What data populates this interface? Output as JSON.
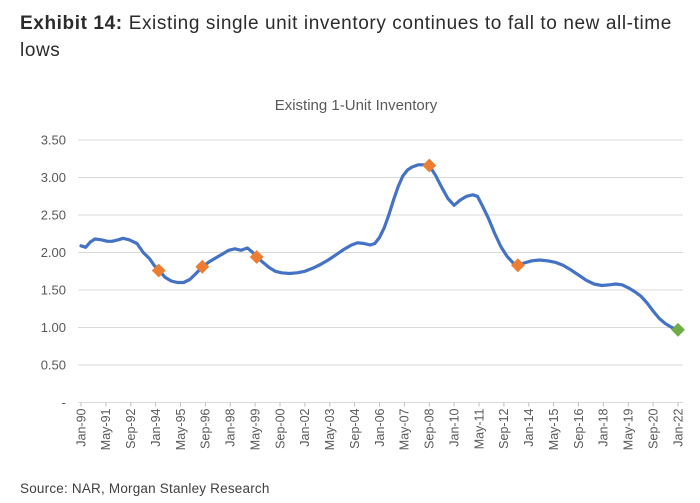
{
  "header": {
    "exhibit_label": "Exhibit 14:",
    "title_rest": "Existing single unit inventory continues to fall to new all-time lows"
  },
  "source_note": "Source: NAR, Morgan Stanley Research",
  "chart_data": {
    "type": "line",
    "title": "Existing 1-Unit Inventory",
    "title_color": "#595959",
    "line_color": "#4472C4",
    "gridline_color": "#D9D9D9",
    "tick_color": "#BFBFBF",
    "axis_text_color": "#595959",
    "grid": "horizontal-only",
    "legend": "none",
    "marker_shape": "diamond",
    "y_axis": {
      "min": 0,
      "max": 3.5,
      "step": 0.5,
      "tick_labels_top_to_bottom": [
        "3.50",
        "3.00",
        "2.50",
        "2.00",
        "1.50",
        "1.00",
        "0.50",
        "-"
      ]
    },
    "x_axis": {
      "tick_labels": [
        "Jan-90",
        "May-91",
        "Sep-92",
        "Jan-94",
        "May-95",
        "Sep-96",
        "Jan-98",
        "May-99",
        "Sep-00",
        "Jan-02",
        "May-03",
        "Sep-04",
        "Jan-06",
        "May-07",
        "Sep-08",
        "Jan-10",
        "May-11",
        "Sep-12",
        "Jan-14",
        "May-15",
        "Sep-16",
        "Jan-18",
        "May-19",
        "Sep-20",
        "Jan-22"
      ],
      "months_between_ticks": 16
    },
    "series": [
      {
        "name": "Existing 1-Unit Inventory",
        "color": "#4472C4",
        "points_month_value": [
          [
            0,
            2.09
          ],
          [
            3,
            2.07
          ],
          [
            6,
            2.14
          ],
          [
            9,
            2.18
          ],
          [
            13,
            2.17
          ],
          [
            17,
            2.15
          ],
          [
            20,
            2.15
          ],
          [
            24,
            2.17
          ],
          [
            27,
            2.19
          ],
          [
            31,
            2.17
          ],
          [
            36,
            2.12
          ],
          [
            40,
            2.0
          ],
          [
            44,
            1.92
          ],
          [
            47,
            1.83
          ],
          [
            50,
            1.77
          ],
          [
            54,
            1.67
          ],
          [
            58,
            1.62
          ],
          [
            62,
            1.6
          ],
          [
            66,
            1.6
          ],
          [
            70,
            1.64
          ],
          [
            74,
            1.72
          ],
          [
            78,
            1.81
          ],
          [
            82,
            1.87
          ],
          [
            86,
            1.92
          ],
          [
            91,
            1.98
          ],
          [
            95,
            2.03
          ],
          [
            99,
            2.05
          ],
          [
            103,
            2.03
          ],
          [
            107,
            2.06
          ],
          [
            110,
            2.01
          ],
          [
            113,
            1.94
          ],
          [
            117,
            1.87
          ],
          [
            121,
            1.8
          ],
          [
            125,
            1.75
          ],
          [
            129,
            1.73
          ],
          [
            134,
            1.72
          ],
          [
            139,
            1.73
          ],
          [
            144,
            1.75
          ],
          [
            149,
            1.79
          ],
          [
            154,
            1.84
          ],
          [
            159,
            1.9
          ],
          [
            164,
            1.97
          ],
          [
            169,
            2.04
          ],
          [
            174,
            2.1
          ],
          [
            178,
            2.13
          ],
          [
            182,
            2.12
          ],
          [
            186,
            2.1
          ],
          [
            189,
            2.12
          ],
          [
            192,
            2.2
          ],
          [
            195,
            2.33
          ],
          [
            198,
            2.5
          ],
          [
            201,
            2.7
          ],
          [
            204,
            2.88
          ],
          [
            207,
            3.02
          ],
          [
            210,
            3.1
          ],
          [
            213,
            3.14
          ],
          [
            217,
            3.17
          ],
          [
            221,
            3.17
          ],
          [
            224,
            3.16
          ],
          [
            228,
            3.03
          ],
          [
            232,
            2.87
          ],
          [
            236,
            2.72
          ],
          [
            240,
            2.63
          ],
          [
            244,
            2.7
          ],
          [
            248,
            2.75
          ],
          [
            252,
            2.77
          ],
          [
            255,
            2.75
          ],
          [
            258,
            2.63
          ],
          [
            262,
            2.46
          ],
          [
            266,
            2.26
          ],
          [
            270,
            2.08
          ],
          [
            274,
            1.95
          ],
          [
            278,
            1.86
          ],
          [
            281,
            1.83
          ],
          [
            285,
            1.86
          ],
          [
            290,
            1.89
          ],
          [
            295,
            1.9
          ],
          [
            300,
            1.89
          ],
          [
            305,
            1.87
          ],
          [
            310,
            1.83
          ],
          [
            315,
            1.77
          ],
          [
            320,
            1.7
          ],
          [
            325,
            1.63
          ],
          [
            330,
            1.58
          ],
          [
            335,
            1.56
          ],
          [
            340,
            1.57
          ],
          [
            344,
            1.58
          ],
          [
            348,
            1.57
          ],
          [
            352,
            1.53
          ],
          [
            356,
            1.48
          ],
          [
            360,
            1.42
          ],
          [
            364,
            1.33
          ],
          [
            368,
            1.22
          ],
          [
            372,
            1.12
          ],
          [
            376,
            1.05
          ],
          [
            380,
            1.0
          ],
          [
            384,
            0.97
          ]
        ]
      }
    ],
    "markers": [
      {
        "month": 50,
        "value": 1.76,
        "color": "#ED7D31"
      },
      {
        "month": 78,
        "value": 1.81,
        "color": "#ED7D31"
      },
      {
        "month": 113,
        "value": 1.94,
        "color": "#ED7D31"
      },
      {
        "month": 224,
        "value": 3.16,
        "color": "#ED7D31"
      },
      {
        "month": 281,
        "value": 1.83,
        "color": "#ED7D31"
      },
      {
        "month": 384,
        "value": 0.97,
        "color": "#70AD47"
      }
    ]
  }
}
